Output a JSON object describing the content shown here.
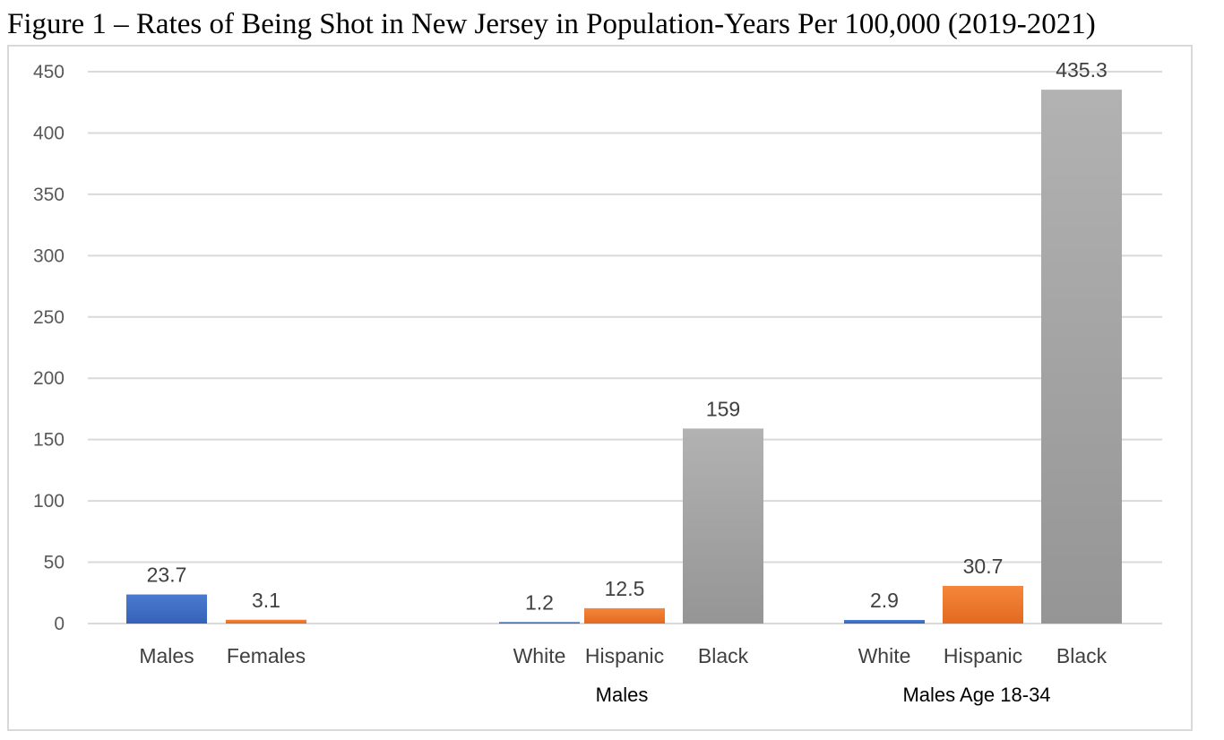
{
  "figure": {
    "title": "Figure 1 – Rates of Being Shot in New Jersey in Population-Years Per 100,000 (2019-2021)"
  },
  "colors": {
    "blue": "#4472c4",
    "orange": "#ed7d31",
    "gray": "#a5a5a5",
    "gridline": "#d9d9d9",
    "tick_text": "#595959"
  },
  "chart_data": {
    "type": "bar",
    "title": "",
    "ylim": [
      0,
      450
    ],
    "yticks": [
      0,
      50,
      100,
      150,
      200,
      250,
      300,
      350,
      400,
      450
    ],
    "grid": true,
    "bars": [
      {
        "group": "",
        "category": "Males",
        "value": 23.7,
        "label": "23.7",
        "color": "blue"
      },
      {
        "group": "",
        "category": "Females",
        "value": 3.1,
        "label": "3.1",
        "color": "orange"
      },
      {
        "group": "Males",
        "category": "White",
        "value": 1.2,
        "label": "1.2",
        "color": "blue"
      },
      {
        "group": "Males",
        "category": "Hispanic",
        "value": 12.5,
        "label": "12.5",
        "color": "orange"
      },
      {
        "group": "Males",
        "category": "Black",
        "value": 159,
        "label": "159",
        "color": "gray"
      },
      {
        "group": "Males Age 18-34",
        "category": "White",
        "value": 2.9,
        "label": "2.9",
        "color": "blue"
      },
      {
        "group": "Males Age 18-34",
        "category": "Hispanic",
        "value": 30.7,
        "label": "30.7",
        "color": "orange"
      },
      {
        "group": "Males Age 18-34",
        "category": "Black",
        "value": 435.3,
        "label": "435.3",
        "color": "gray"
      }
    ],
    "groups": [
      "",
      "Males",
      "Males Age 18-34"
    ]
  }
}
